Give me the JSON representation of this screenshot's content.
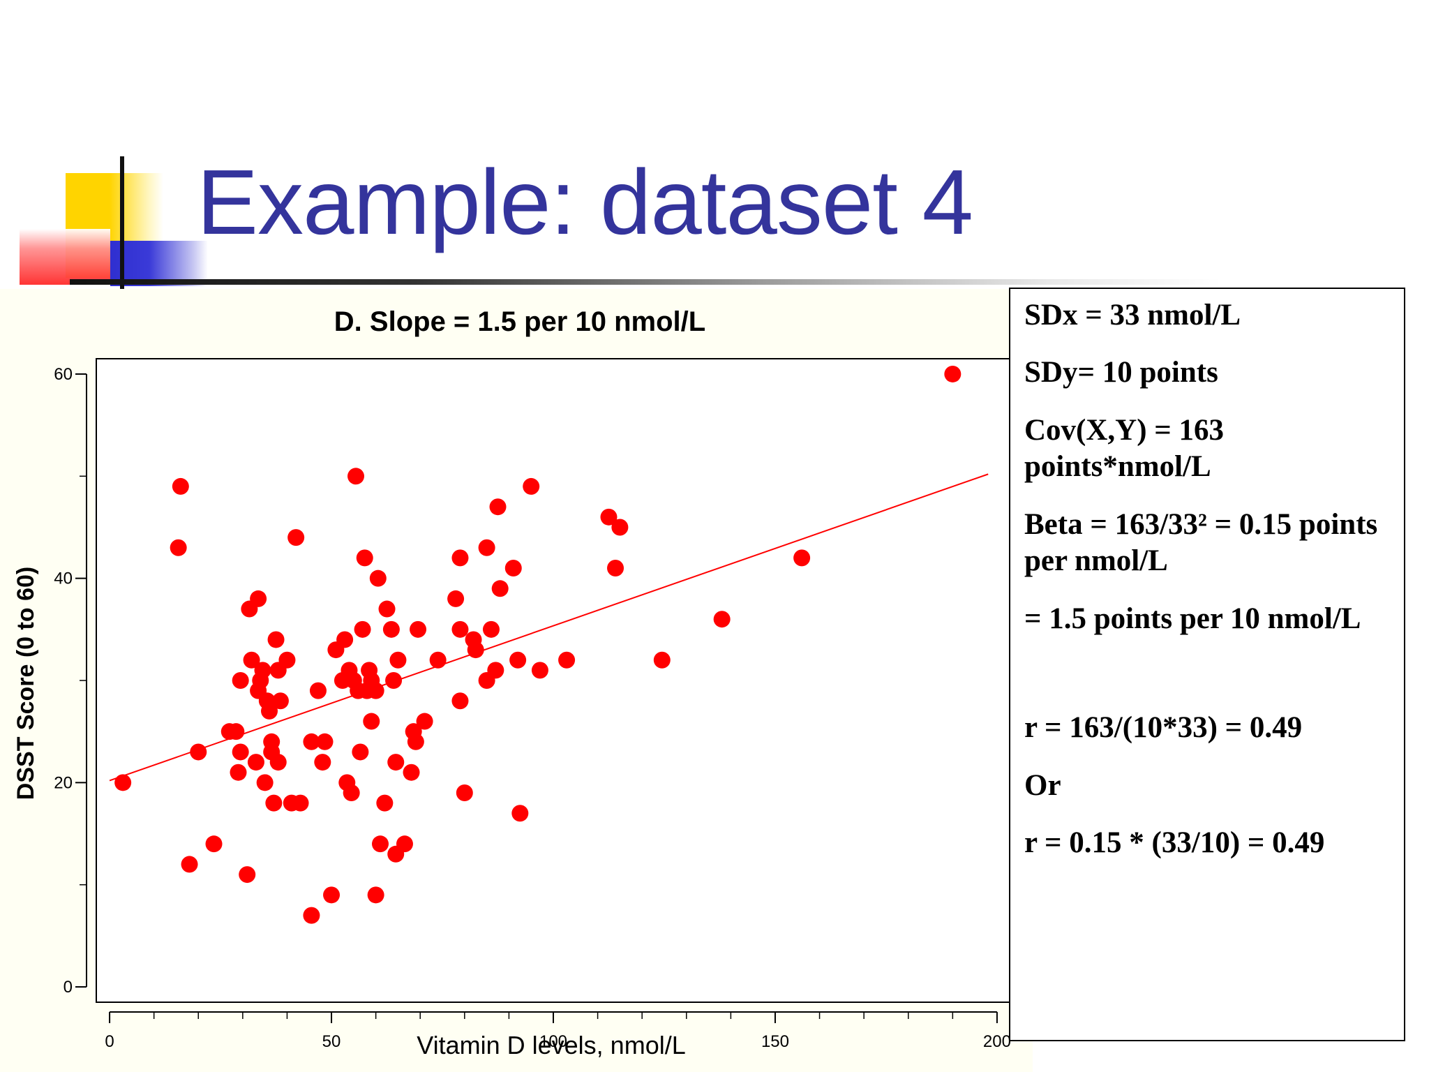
{
  "slide": {
    "title": "Example: dataset 4"
  },
  "info_box": {
    "lines": [
      "SDx = 33 nmol/L",
      "SDy= 10 points",
      "Cov(X,Y) = 163 points*nmol/L",
      "Beta = 163/33² = 0.15 points per nmol/L",
      "= 1.5 points per 10 nmol/L",
      "r = 163/(10*33) = 0.49",
      "Or",
      "r = 0.15 * (33/10) = 0.49"
    ]
  },
  "chart_data": {
    "type": "scatter",
    "title": "D. Slope = 1.5 per 10 nmol/L",
    "xlabel": "Vitamin D levels, nmol/L",
    "ylabel": "DSST Score (0 to 60)",
    "xlim": [
      -3,
      203
    ],
    "ylim": [
      -1.5,
      61.5
    ],
    "x_ticks": [
      0,
      50,
      100,
      150,
      200
    ],
    "x_minor_ticks": [
      10,
      20,
      30,
      40,
      60,
      70,
      80,
      90,
      110,
      120,
      130,
      140,
      160,
      170,
      180,
      190
    ],
    "y_ticks": [
      0,
      20,
      40,
      60
    ],
    "y_minor_ticks": [
      10,
      30,
      50
    ],
    "grid": false,
    "point_color": "#ff0000",
    "fit_line": {
      "x": [
        0,
        198
      ],
      "y": [
        20.2,
        50.2
      ],
      "color": "#ff0000"
    },
    "points": [
      [
        3,
        20
      ],
      [
        15.5,
        43
      ],
      [
        16,
        49
      ],
      [
        18,
        12
      ],
      [
        20,
        23
      ],
      [
        23.5,
        14
      ],
      [
        27,
        25
      ],
      [
        28.5,
        25
      ],
      [
        29,
        21
      ],
      [
        29.5,
        23
      ],
      [
        29.5,
        30
      ],
      [
        31,
        11
      ],
      [
        31.5,
        37
      ],
      [
        32,
        32
      ],
      [
        33,
        22
      ],
      [
        33.5,
        38
      ],
      [
        33.5,
        29
      ],
      [
        34,
        30
      ],
      [
        34.5,
        31
      ],
      [
        35,
        20
      ],
      [
        35.5,
        28
      ],
      [
        36,
        27
      ],
      [
        36.5,
        24
      ],
      [
        36.5,
        23
      ],
      [
        37,
        18
      ],
      [
        37.5,
        34
      ],
      [
        38,
        22
      ],
      [
        38,
        31
      ],
      [
        38.5,
        28
      ],
      [
        40,
        32
      ],
      [
        41,
        18
      ],
      [
        42,
        44
      ],
      [
        43,
        18
      ],
      [
        45.5,
        7
      ],
      [
        45.5,
        24
      ],
      [
        47,
        29
      ],
      [
        48,
        22
      ],
      [
        48.5,
        24
      ],
      [
        50,
        9
      ],
      [
        51,
        33
      ],
      [
        52.5,
        30
      ],
      [
        53,
        34
      ],
      [
        53.5,
        20
      ],
      [
        54,
        31
      ],
      [
        54.5,
        19
      ],
      [
        55,
        30
      ],
      [
        55.5,
        50
      ],
      [
        56,
        29
      ],
      [
        56.5,
        23
      ],
      [
        57,
        35
      ],
      [
        57.5,
        42
      ],
      [
        58,
        29
      ],
      [
        58.5,
        31
      ],
      [
        59,
        26
      ],
      [
        59,
        30
      ],
      [
        60,
        9
      ],
      [
        60,
        29
      ],
      [
        60.5,
        40
      ],
      [
        61,
        14
      ],
      [
        62,
        18
      ],
      [
        62.5,
        37
      ],
      [
        63.5,
        35
      ],
      [
        64,
        30
      ],
      [
        64.5,
        13
      ],
      [
        64.5,
        22
      ],
      [
        65,
        32
      ],
      [
        66.5,
        14
      ],
      [
        68,
        21
      ],
      [
        68.5,
        25
      ],
      [
        69,
        24
      ],
      [
        69.5,
        35
      ],
      [
        71,
        26
      ],
      [
        74,
        32
      ],
      [
        78,
        38
      ],
      [
        79,
        28
      ],
      [
        79,
        35
      ],
      [
        79,
        42
      ],
      [
        80,
        19
      ],
      [
        82,
        34
      ],
      [
        82.5,
        33
      ],
      [
        85,
        43
      ],
      [
        85,
        30
      ],
      [
        86,
        35
      ],
      [
        87,
        31
      ],
      [
        87.5,
        47
      ],
      [
        88,
        39
      ],
      [
        91,
        41
      ],
      [
        92,
        32
      ],
      [
        92.5,
        17
      ],
      [
        95,
        49
      ],
      [
        97,
        31
      ],
      [
        103,
        32
      ],
      [
        112.5,
        46
      ],
      [
        114,
        41
      ],
      [
        115,
        45
      ],
      [
        124.5,
        32
      ],
      [
        138,
        36
      ],
      [
        156,
        42
      ],
      [
        190,
        60
      ]
    ]
  }
}
